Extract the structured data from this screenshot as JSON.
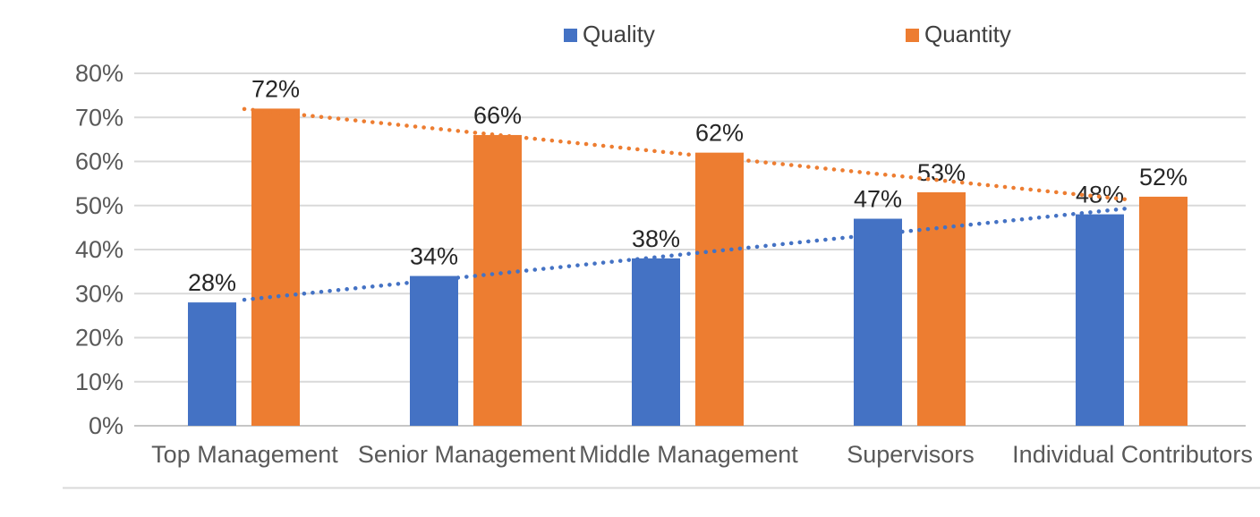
{
  "chart_data": {
    "type": "bar",
    "title": "",
    "categories": [
      "Top Management",
      "Senior Management",
      "Middle Management",
      "Supervisors",
      "Individual Contributors"
    ],
    "series": [
      {
        "name": "Quality",
        "color": "#4472C4",
        "values": [
          28,
          34,
          38,
          47,
          48
        ],
        "labels": [
          "28%",
          "34%",
          "38%",
          "47%",
          "48%"
        ],
        "trendline": {
          "style": "dotted",
          "start_value": 28.6,
          "end_value": 49.4
        }
      },
      {
        "name": "Quantity",
        "color": "#ED7D31",
        "values": [
          72,
          66,
          62,
          53,
          52
        ],
        "labels": [
          "72%",
          "66%",
          "62%",
          "53%",
          "52%"
        ],
        "trendline": {
          "style": "dotted",
          "start_value": 71.9,
          "end_value": 51.3
        }
      }
    ],
    "y_axis": {
      "min": 0,
      "max": 80,
      "step": 10,
      "ticks_top_to_bottom": [
        "80%",
        "70%",
        "60%",
        "50%",
        "40%",
        "30%",
        "20%",
        "10%",
        "0%"
      ]
    },
    "legend_position": "top",
    "grid": true
  },
  "colors": {
    "quality": "#4472C4",
    "quantity": "#ED7D31",
    "gridline": "#D9D9D9",
    "axis_baseline": "#C6C6C6",
    "axis_text": "#595959",
    "data_label_text": "#262626",
    "legend_text": "#404040",
    "divider": "#D9D9D9",
    "background": "#FFFFFF"
  }
}
